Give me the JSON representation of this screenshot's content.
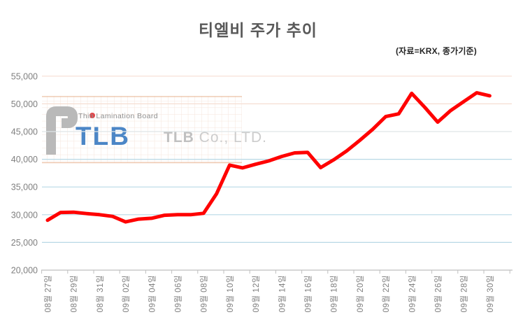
{
  "header": {
    "title": "티엘비 주가 추이",
    "subtitle": "(자료=KRX, 종가기준)"
  },
  "watermark": {
    "tagline": "Thin Lamination Board",
    "logo_text": "TLB",
    "company": "TLB",
    "company_suffix": " Co., LTD."
  },
  "colors": {
    "line": "#ff0000",
    "title": "#595959",
    "axis_label": "#7f7f7f",
    "axis_line": "#bfbfbf",
    "grid_peach": "#f6ded2",
    "grid_gray": "#dfe5e8",
    "grid_blue": "#b8d8e6",
    "watermark_grid": "#f5e5db",
    "watermark_border": "#ecc0a5",
    "logo_gray": "#b9b9b9",
    "logo_blue": "#4c86c6",
    "logo_dot_red": "#e0474c"
  },
  "chart_data": {
    "type": "line",
    "title": "티엘비 주가 추이",
    "source_note": "(자료=KRX, 종가기준)",
    "x_labels": [
      "08월 27일",
      "08월 29일",
      "08월 31일",
      "09월 02일",
      "09월 04일",
      "09월 06일",
      "09월 08일",
      "09월 10일",
      "09월 12일",
      "09월 14일",
      "09월 16일",
      "09월 18일",
      "09월 20일",
      "09월 22일",
      "09월 24일",
      "09월 26일",
      "09월 28일",
      "09월 30일"
    ],
    "label_every": 2,
    "values": [
      29000,
      30400,
      30450,
      30200,
      30000,
      29700,
      28700,
      29200,
      29350,
      29900,
      30000,
      30000,
      30250,
      33800,
      38950,
      38450,
      39100,
      39700,
      40500,
      41150,
      41250,
      38500,
      39900,
      41500,
      43400,
      45400,
      47700,
      48200,
      51900,
      49400,
      46700,
      48800,
      50400,
      52000,
      51450
    ],
    "y_ticks": [
      20000,
      25000,
      30000,
      35000,
      40000,
      45000,
      50000,
      55000
    ],
    "y_tick_labels": [
      "20,000",
      "25,000",
      "30,000",
      "35,000",
      "40,000",
      "45,000",
      "50,000",
      "55,000"
    ],
    "grid_line_colors": [
      "axis",
      "blue",
      "blue",
      "blue",
      "blue",
      "gray",
      "peach",
      "peach"
    ],
    "ylim": [
      20000,
      57000
    ],
    "grid": true,
    "legend": false,
    "line_color": "#ff0000"
  }
}
